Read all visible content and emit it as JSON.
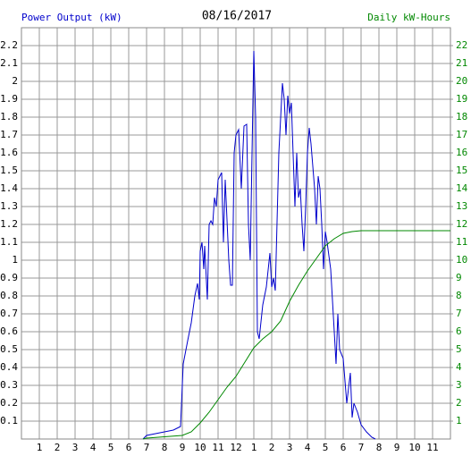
{
  "chart_data": {
    "type": "line",
    "title": "08/16/2017",
    "y_label": "Power Output (kW)",
    "y2_label": "Daily kW-Hours",
    "grid": true,
    "xlim": [
      0,
      24
    ],
    "xticks": [
      1,
      2,
      3,
      4,
      5,
      6,
      7,
      8,
      9,
      10,
      11,
      12,
      {
        "value": 13,
        "label": "1"
      },
      {
        "value": 14,
        "label": "2"
      },
      {
        "value": 15,
        "label": "3"
      },
      {
        "value": 16,
        "label": "4"
      },
      {
        "value": 17,
        "label": "5"
      },
      {
        "value": 18,
        "label": "6"
      },
      {
        "value": 19,
        "label": "7"
      },
      {
        "value": 20,
        "label": "8"
      },
      {
        "value": 21,
        "label": "9"
      },
      {
        "value": 22,
        "label": "10"
      },
      {
        "value": 23,
        "label": "11"
      }
    ],
    "ylim": [
      0,
      2.3
    ],
    "yticks": [
      0.1,
      0.2,
      0.3,
      0.4,
      0.5,
      0.6,
      0.7,
      0.8,
      0.9,
      1.0,
      1.1,
      1.2,
      1.3,
      1.4,
      1.5,
      1.6,
      1.7,
      1.8,
      1.9,
      2.0,
      2.1,
      2.2
    ],
    "y2lim": [
      0,
      23
    ],
    "y2ticks": [
      1,
      2,
      3,
      4,
      5,
      6,
      7,
      8,
      9,
      10,
      11,
      12,
      13,
      14,
      15,
      16,
      17,
      18,
      19,
      20,
      21,
      22
    ],
    "series": [
      {
        "color": "#0000cc",
        "x": [
          6.8,
          7.0,
          7.5,
          8.0,
          8.5,
          8.9,
          9.05,
          9.3,
          9.5,
          9.7,
          9.85,
          9.95,
          10.0,
          10.1,
          10.2,
          10.25,
          10.4,
          10.5,
          10.6,
          10.7,
          10.8,
          10.9,
          11.0,
          11.2,
          11.3,
          11.4,
          11.6,
          11.7,
          11.8,
          11.9,
          12.0,
          12.15,
          12.3,
          12.45,
          12.6,
          12.7,
          12.8,
          12.9,
          13.0,
          13.1,
          13.2,
          13.3,
          13.5,
          13.7,
          13.9,
          14.0,
          14.1,
          14.2,
          14.4,
          14.6,
          14.7,
          14.8,
          14.9,
          15.0,
          15.1,
          15.3,
          15.4,
          15.5,
          15.6,
          15.7,
          15.8,
          15.9,
          16.0,
          16.1,
          16.2,
          16.4,
          16.5,
          16.6,
          16.7,
          16.8,
          16.9,
          17.0,
          17.1,
          17.3,
          17.5,
          17.6,
          17.7,
          17.8,
          18.0,
          18.2,
          18.4,
          18.5,
          18.6,
          18.8,
          19.0,
          19.3,
          19.6,
          19.8
        ],
        "values": [
          0,
          0.02,
          0.03,
          0.04,
          0.05,
          0.07,
          0.42,
          0.55,
          0.65,
          0.8,
          0.87,
          0.78,
          1.05,
          1.1,
          0.95,
          1.08,
          0.78,
          1.2,
          1.22,
          1.2,
          1.35,
          1.3,
          1.45,
          1.49,
          1.1,
          1.45,
          1.0,
          0.86,
          0.86,
          1.6,
          1.7,
          1.73,
          1.4,
          1.75,
          1.76,
          1.2,
          1.0,
          1.6,
          2.17,
          1.8,
          0.6,
          0.56,
          0.75,
          0.85,
          1.04,
          0.85,
          0.9,
          0.83,
          1.6,
          1.99,
          1.9,
          1.7,
          1.92,
          1.82,
          1.88,
          1.3,
          1.6,
          1.35,
          1.4,
          1.2,
          1.05,
          1.3,
          1.6,
          1.74,
          1.65,
          1.4,
          1.2,
          1.47,
          1.4,
          1.2,
          0.95,
          1.16,
          1.1,
          0.95,
          0.6,
          0.42,
          0.7,
          0.5,
          0.45,
          0.2,
          0.37,
          0.12,
          0.2,
          0.15,
          0.08,
          0.04,
          0.01,
          0
        ]
      },
      {
        "color": "#008800",
        "axis": "y2",
        "x": [
          6.8,
          7.0,
          9.0,
          9.5,
          10.0,
          10.5,
          11.0,
          11.5,
          12.0,
          12.5,
          13.0,
          13.5,
          14.0,
          14.5,
          15.0,
          15.5,
          16.0,
          16.5,
          17.0,
          17.5,
          18.0,
          18.5,
          19.0,
          24.0
        ],
        "values": [
          0,
          0.05,
          0.2,
          0.4,
          0.9,
          1.5,
          2.2,
          2.9,
          3.5,
          4.3,
          5.1,
          5.6,
          6.0,
          6.6,
          7.7,
          8.6,
          9.4,
          10.1,
          10.8,
          11.2,
          11.5,
          11.6,
          11.65,
          11.65
        ]
      }
    ]
  }
}
